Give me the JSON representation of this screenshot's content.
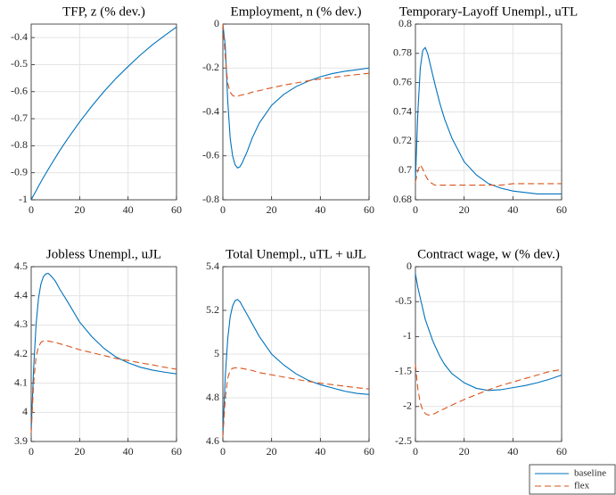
{
  "chart_data": [
    {
      "type": "line",
      "title": "TFP, z (% dev.)",
      "x": [
        0,
        1,
        2,
        3,
        4,
        5,
        6,
        7,
        8,
        10,
        12,
        15,
        20,
        25,
        30,
        35,
        40,
        45,
        50,
        55,
        60
      ],
      "series": [
        {
          "name": "baseline",
          "color": "#0072bd",
          "values": [
            -1,
            -0.983,
            -0.967,
            -0.95,
            -0.934,
            -0.918,
            -0.903,
            -0.888,
            -0.873,
            -0.844,
            -0.815,
            -0.775,
            -0.712,
            -0.654,
            -0.6,
            -0.551,
            -0.507,
            -0.465,
            -0.427,
            -0.393,
            -0.361
          ]
        }
      ],
      "xlim": [
        0,
        60
      ],
      "xticks": [
        0,
        20,
        40,
        60
      ],
      "ylim": [
        -1,
        -0.35
      ],
      "yticks": [
        -1,
        -0.9,
        -0.8,
        -0.7,
        -0.6,
        -0.5,
        -0.4
      ],
      "grid": true
    },
    {
      "type": "line",
      "title": "Employment, n (% dev.)",
      "x": [
        0,
        1,
        2,
        3,
        4,
        5,
        6,
        7,
        8,
        10,
        12,
        15,
        20,
        25,
        30,
        35,
        40,
        45,
        50,
        55,
        60
      ],
      "series": [
        {
          "name": "baseline",
          "color": "#0072bd",
          "values": [
            0,
            -0.1,
            -0.35,
            -0.52,
            -0.6,
            -0.64,
            -0.655,
            -0.65,
            -0.63,
            -0.58,
            -0.52,
            -0.45,
            -0.37,
            -0.32,
            -0.285,
            -0.26,
            -0.24,
            -0.225,
            -0.215,
            -0.208,
            -0.2
          ]
        },
        {
          "name": "flex",
          "color": "#d95319",
          "dashed": true,
          "values": [
            0,
            -0.15,
            -0.27,
            -0.31,
            -0.325,
            -0.33,
            -0.328,
            -0.325,
            -0.322,
            -0.318,
            -0.31,
            -0.303,
            -0.29,
            -0.278,
            -0.268,
            -0.258,
            -0.25,
            -0.243,
            -0.236,
            -0.23,
            -0.224
          ]
        }
      ],
      "xlim": [
        0,
        60
      ],
      "xticks": [
        0,
        20,
        40,
        60
      ],
      "ylim": [
        -0.8,
        0
      ],
      "yticks": [
        -0.8,
        -0.6,
        -0.4,
        -0.2,
        0
      ],
      "grid": true
    },
    {
      "type": "line",
      "title": "Temporary-Layoff Unempl., uTL",
      "x": [
        0,
        1,
        2,
        3,
        4,
        5,
        6,
        7,
        8,
        10,
        12,
        15,
        20,
        25,
        30,
        35,
        40,
        45,
        50,
        55,
        60
      ],
      "series": [
        {
          "name": "baseline",
          "color": "#0072bd",
          "values": [
            0.693,
            0.74,
            0.77,
            0.782,
            0.784,
            0.78,
            0.773,
            0.766,
            0.759,
            0.746,
            0.735,
            0.722,
            0.706,
            0.697,
            0.691,
            0.688,
            0.686,
            0.685,
            0.684,
            0.684,
            0.684
          ]
        },
        {
          "name": "flex",
          "color": "#d95319",
          "dashed": true,
          "values": [
            0.692,
            0.7,
            0.704,
            0.701,
            0.697,
            0.694,
            0.692,
            0.691,
            0.69,
            0.69,
            0.69,
            0.69,
            0.69,
            0.69,
            0.69,
            0.69,
            0.691,
            0.691,
            0.691,
            0.691,
            0.691
          ]
        }
      ],
      "xlim": [
        0,
        60
      ],
      "xticks": [
        0,
        20,
        40,
        60
      ],
      "ylim": [
        0.68,
        0.8
      ],
      "yticks": [
        0.68,
        0.7,
        0.72,
        0.74,
        0.76,
        0.78,
        0.8
      ],
      "grid": true
    },
    {
      "type": "line",
      "title": "Jobless Unempl., uJL",
      "x": [
        0,
        1,
        2,
        3,
        4,
        5,
        6,
        7,
        8,
        10,
        12,
        15,
        20,
        25,
        30,
        35,
        40,
        45,
        50,
        55,
        60
      ],
      "series": [
        {
          "name": "baseline",
          "color": "#0072bd",
          "values": [
            3.94,
            4.15,
            4.3,
            4.39,
            4.44,
            4.465,
            4.475,
            4.477,
            4.47,
            4.45,
            4.42,
            4.38,
            4.31,
            4.26,
            4.22,
            4.19,
            4.17,
            4.155,
            4.145,
            4.138,
            4.132
          ]
        },
        {
          "name": "flex",
          "color": "#d95319",
          "dashed": true,
          "values": [
            3.93,
            4.1,
            4.19,
            4.225,
            4.24,
            4.245,
            4.246,
            4.245,
            4.243,
            4.24,
            4.235,
            4.228,
            4.215,
            4.205,
            4.195,
            4.185,
            4.178,
            4.17,
            4.163,
            4.155,
            4.148
          ]
        }
      ],
      "xlim": [
        0,
        60
      ],
      "xticks": [
        0,
        20,
        40,
        60
      ],
      "ylim": [
        3.9,
        4.5
      ],
      "yticks": [
        3.9,
        4,
        4.1,
        4.2,
        4.3,
        4.4,
        4.5
      ],
      "grid": true
    },
    {
      "type": "line",
      "title": "Total Unempl., uTL + uJL",
      "x": [
        0,
        1,
        2,
        3,
        4,
        5,
        6,
        7,
        8,
        10,
        12,
        15,
        20,
        25,
        30,
        35,
        40,
        45,
        50,
        55,
        60
      ],
      "series": [
        {
          "name": "baseline",
          "color": "#0072bd",
          "values": [
            4.63,
            4.9,
            5.07,
            5.17,
            5.22,
            5.245,
            5.25,
            5.24,
            5.22,
            5.18,
            5.14,
            5.08,
            5.0,
            4.95,
            4.91,
            4.88,
            4.86,
            4.845,
            4.83,
            4.82,
            4.815
          ]
        },
        {
          "name": "flex",
          "color": "#d95319",
          "dashed": true,
          "values": [
            4.62,
            4.8,
            4.89,
            4.925,
            4.935,
            4.937,
            4.937,
            4.936,
            4.934,
            4.93,
            4.925,
            4.915,
            4.905,
            4.895,
            4.885,
            4.875,
            4.867,
            4.86,
            4.853,
            4.846,
            4.84
          ]
        }
      ],
      "xlim": [
        0,
        60
      ],
      "xticks": [
        0,
        20,
        40,
        60
      ],
      "ylim": [
        4.6,
        5.4
      ],
      "yticks": [
        4.6,
        4.8,
        5,
        5.2,
        5.4
      ],
      "grid": true
    },
    {
      "type": "line",
      "title": "Contract wage, w (% dev.)",
      "x": [
        0,
        1,
        2,
        3,
        4,
        5,
        6,
        7,
        8,
        10,
        12,
        15,
        20,
        25,
        30,
        35,
        40,
        45,
        50,
        55,
        60
      ],
      "series": [
        {
          "name": "baseline",
          "color": "#0072bd",
          "values": [
            -0.1,
            -0.3,
            -0.45,
            -0.6,
            -0.75,
            -0.85,
            -0.95,
            -1.05,
            -1.13,
            -1.28,
            -1.4,
            -1.53,
            -1.66,
            -1.74,
            -1.77,
            -1.76,
            -1.73,
            -1.7,
            -1.66,
            -1.61,
            -1.55
          ]
        },
        {
          "name": "flex",
          "color": "#d95319",
          "dashed": true,
          "values": [
            -1.4,
            -1.75,
            -1.95,
            -2.05,
            -2.1,
            -2.12,
            -2.12,
            -2.11,
            -2.1,
            -2.06,
            -2.03,
            -1.98,
            -1.9,
            -1.83,
            -1.76,
            -1.7,
            -1.65,
            -1.6,
            -1.55,
            -1.5,
            -1.47
          ]
        }
      ],
      "xlim": [
        0,
        60
      ],
      "xticks": [
        0,
        20,
        40,
        60
      ],
      "ylim": [
        -2.5,
        0
      ],
      "yticks": [
        -2.5,
        -2,
        -1.5,
        -1,
        -0.5,
        0
      ],
      "grid": true
    }
  ]
}
